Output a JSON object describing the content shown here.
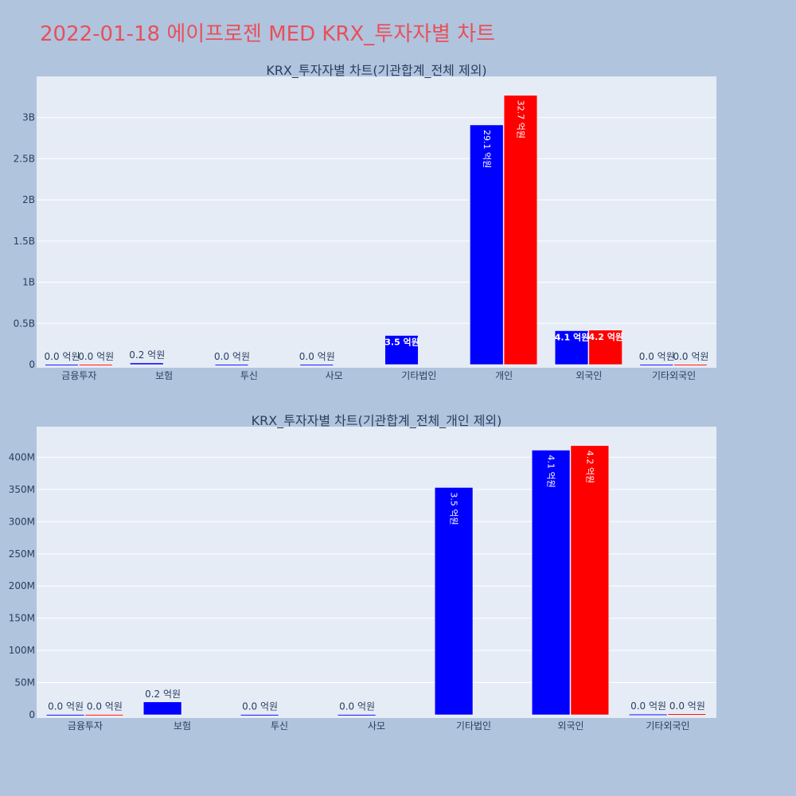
{
  "title": "2022-01-18 에이프로젠 MED KRX_투자자별 차트",
  "colors": {
    "buy": "#0000ff",
    "sell": "#ff0000",
    "plot_bg": "#e5ecf6",
    "page_bg": "#b0c4de"
  },
  "chart_data": [
    {
      "type": "bar",
      "title": "KRX_투자자별 차트(기관합계_전체 제외)",
      "categories": [
        "금융투자",
        "보험",
        "투신",
        "사모",
        "기타법인",
        "개인",
        "외국인",
        "기타외국인"
      ],
      "ylim": [
        0,
        3480000000
      ],
      "yticks": [
        0,
        500000000,
        1000000000,
        1500000000,
        2000000000,
        2500000000,
        3000000000
      ],
      "yticklabels": [
        "0",
        "0.5B",
        "1B",
        "1.5B",
        "2B",
        "2.5B",
        "3B"
      ],
      "grid": true,
      "series": [
        {
          "values": [
            1000000,
            20000000,
            1000000,
            1000000,
            353000000,
            2910000000,
            411000000,
            1000000
          ],
          "labels": [
            "0.0 억원",
            "0.2 억원",
            "0.0 억원",
            "0.0 억원",
            "3.5 억원",
            "29.1 억원",
            "4.1 억원",
            "0.0 억원"
          ]
        },
        {
          "values": [
            1000000,
            0,
            0,
            0,
            0,
            3270000000,
            418000000,
            1000000
          ],
          "labels": [
            "0.0 억원",
            "",
            "",
            "",
            "",
            "32.7 억원",
            "4.2 억원",
            "0.0 억원"
          ]
        }
      ]
    },
    {
      "type": "bar",
      "title": "KRX_투자자별 차트(기관합계_전체_개인 제외)",
      "categories": [
        "금융투자",
        "보험",
        "투신",
        "사모",
        "기타법인",
        "외국인",
        "기타외국인"
      ],
      "ylim": [
        0,
        445000000
      ],
      "yticks": [
        0,
        50000000,
        100000000,
        150000000,
        200000000,
        250000000,
        300000000,
        350000000,
        400000000
      ],
      "yticklabels": [
        "0",
        "50M",
        "100M",
        "150M",
        "200M",
        "250M",
        "300M",
        "350M",
        "400M"
      ],
      "grid": true,
      "series": [
        {
          "values": [
            500000,
            20000000,
            500000,
            500000,
            353000000,
            411000000,
            1000000
          ],
          "labels": [
            "0.0 억원",
            "0.2 억원",
            "0.0 억원",
            "0.0 억원",
            "3.5 억원",
            "4.1 억원",
            "0.0 억원"
          ]
        },
        {
          "values": [
            500000,
            0,
            0,
            0,
            0,
            418000000,
            1500000
          ],
          "labels": [
            "0.0 억원",
            "",
            "",
            "",
            "",
            "4.2 억원",
            "0.0 억원"
          ]
        }
      ]
    }
  ]
}
